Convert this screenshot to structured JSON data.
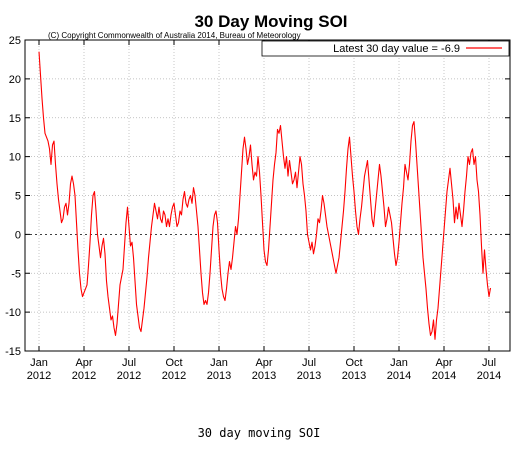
{
  "caption": "30 day moving SOI",
  "chart_data": {
    "type": "line",
    "title": "30 Day Moving SOI",
    "subtitle": "(C) Copyright Commonwealth of Australia 2014, Bureau of Meteorology",
    "xlabel": "",
    "ylabel": "",
    "ylim": [
      -15,
      25
    ],
    "yticks": [
      -15,
      -10,
      -5,
      0,
      5,
      10,
      15,
      20,
      25
    ],
    "xlim": [
      0,
      31
    ],
    "xticks": [
      {
        "x": 0,
        "label1": "Jan",
        "label2": "2012"
      },
      {
        "x": 3,
        "label1": "Apr",
        "label2": "2012"
      },
      {
        "x": 6,
        "label1": "Jul",
        "label2": "2012"
      },
      {
        "x": 9,
        "label1": "Oct",
        "label2": "2012"
      },
      {
        "x": 12,
        "label1": "Jan",
        "label2": "2013"
      },
      {
        "x": 15,
        "label1": "Apr",
        "label2": "2013"
      },
      {
        "x": 18,
        "label1": "Jul",
        "label2": "2013"
      },
      {
        "x": 21,
        "label1": "Oct",
        "label2": "2013"
      },
      {
        "x": 24,
        "label1": "Jan",
        "label2": "2014"
      },
      {
        "x": 27,
        "label1": "Apr",
        "label2": "2014"
      },
      {
        "x": 30,
        "label1": "Jul",
        "label2": "2014"
      }
    ],
    "grid": true,
    "legend_position": "top-right",
    "colors": {
      "series": "#ff0000",
      "grid": "#b0b0b0",
      "axis": "#000000"
    },
    "series": [
      {
        "name": "Latest 30 day value = -6.9",
        "points": [
          [
            0.0,
            23.5
          ],
          [
            0.1,
            20.5
          ],
          [
            0.2,
            17.5
          ],
          [
            0.3,
            15.0
          ],
          [
            0.4,
            13.0
          ],
          [
            0.5,
            12.5
          ],
          [
            0.6,
            12.0
          ],
          [
            0.7,
            11.0
          ],
          [
            0.8,
            9.0
          ],
          [
            0.9,
            11.5
          ],
          [
            1.0,
            12.0
          ],
          [
            1.1,
            9.0
          ],
          [
            1.2,
            6.5
          ],
          [
            1.3,
            4.5
          ],
          [
            1.4,
            3.0
          ],
          [
            1.5,
            1.5
          ],
          [
            1.6,
            2.0
          ],
          [
            1.7,
            3.5
          ],
          [
            1.8,
            4.0
          ],
          [
            1.9,
            2.5
          ],
          [
            2.0,
            4.0
          ],
          [
            2.1,
            6.5
          ],
          [
            2.2,
            7.5
          ],
          [
            2.3,
            6.5
          ],
          [
            2.4,
            5.0
          ],
          [
            2.5,
            1.5
          ],
          [
            2.6,
            -2.0
          ],
          [
            2.7,
            -5.0
          ],
          [
            2.8,
            -7.0
          ],
          [
            2.9,
            -8.0
          ],
          [
            3.0,
            -7.5
          ],
          [
            3.1,
            -7.0
          ],
          [
            3.2,
            -6.5
          ],
          [
            3.3,
            -4.0
          ],
          [
            3.4,
            -1.0
          ],
          [
            3.5,
            2.5
          ],
          [
            3.6,
            5.0
          ],
          [
            3.7,
            5.5
          ],
          [
            3.8,
            3.0
          ],
          [
            3.9,
            0.0
          ],
          [
            4.0,
            -1.5
          ],
          [
            4.1,
            -3.0
          ],
          [
            4.2,
            -1.5
          ],
          [
            4.3,
            -0.5
          ],
          [
            4.4,
            -2.5
          ],
          [
            4.5,
            -6.0
          ],
          [
            4.6,
            -8.0
          ],
          [
            4.7,
            -9.5
          ],
          [
            4.8,
            -11.0
          ],
          [
            4.9,
            -10.5
          ],
          [
            5.0,
            -12.0
          ],
          [
            5.1,
            -13.0
          ],
          [
            5.2,
            -11.5
          ],
          [
            5.3,
            -9.0
          ],
          [
            5.4,
            -6.5
          ],
          [
            5.5,
            -5.5
          ],
          [
            5.6,
            -4.5
          ],
          [
            5.7,
            -1.5
          ],
          [
            5.8,
            1.5
          ],
          [
            5.9,
            3.5
          ],
          [
            6.0,
            1.0
          ],
          [
            6.1,
            -1.5
          ],
          [
            6.2,
            -1.0
          ],
          [
            6.3,
            -3.0
          ],
          [
            6.4,
            -6.0
          ],
          [
            6.5,
            -9.0
          ],
          [
            6.6,
            -10.5
          ],
          [
            6.7,
            -12.0
          ],
          [
            6.8,
            -12.5
          ],
          [
            6.9,
            -11.0
          ],
          [
            7.0,
            -9.5
          ],
          [
            7.1,
            -7.5
          ],
          [
            7.2,
            -5.5
          ],
          [
            7.3,
            -3.0
          ],
          [
            7.4,
            -1.0
          ],
          [
            7.5,
            1.0
          ],
          [
            7.6,
            2.5
          ],
          [
            7.7,
            4.0
          ],
          [
            7.8,
            3.0
          ],
          [
            7.9,
            2.0
          ],
          [
            8.0,
            3.5
          ],
          [
            8.1,
            2.0
          ],
          [
            8.2,
            1.5
          ],
          [
            8.3,
            3.0
          ],
          [
            8.4,
            2.5
          ],
          [
            8.5,
            1.0
          ],
          [
            8.6,
            2.0
          ],
          [
            8.7,
            1.0
          ],
          [
            8.8,
            2.5
          ],
          [
            8.9,
            3.5
          ],
          [
            9.0,
            4.0
          ],
          [
            9.1,
            2.5
          ],
          [
            9.2,
            1.0
          ],
          [
            9.3,
            1.5
          ],
          [
            9.4,
            3.0
          ],
          [
            9.5,
            2.5
          ],
          [
            9.6,
            4.5
          ],
          [
            9.7,
            5.5
          ],
          [
            9.8,
            4.0
          ],
          [
            9.9,
            3.5
          ],
          [
            10.0,
            4.5
          ],
          [
            10.1,
            5.0
          ],
          [
            10.2,
            4.0
          ],
          [
            10.3,
            6.0
          ],
          [
            10.4,
            5.0
          ],
          [
            10.5,
            3.0
          ],
          [
            10.6,
            1.0
          ],
          [
            10.7,
            -2.0
          ],
          [
            10.8,
            -5.0
          ],
          [
            10.9,
            -7.5
          ],
          [
            11.0,
            -9.0
          ],
          [
            11.1,
            -8.5
          ],
          [
            11.2,
            -9.0
          ],
          [
            11.3,
            -7.5
          ],
          [
            11.4,
            -5.0
          ],
          [
            11.5,
            -2.0
          ],
          [
            11.6,
            1.0
          ],
          [
            11.7,
            2.5
          ],
          [
            11.8,
            3.0
          ],
          [
            11.9,
            1.5
          ],
          [
            12.0,
            -2.0
          ],
          [
            12.1,
            -5.0
          ],
          [
            12.2,
            -7.0
          ],
          [
            12.3,
            -8.0
          ],
          [
            12.4,
            -8.5
          ],
          [
            12.5,
            -7.0
          ],
          [
            12.6,
            -5.0
          ],
          [
            12.7,
            -3.5
          ],
          [
            12.8,
            -4.5
          ],
          [
            12.9,
            -3.0
          ],
          [
            13.0,
            -1.0
          ],
          [
            13.1,
            1.0
          ],
          [
            13.2,
            0.0
          ],
          [
            13.3,
            2.0
          ],
          [
            13.4,
            5.0
          ],
          [
            13.5,
            8.0
          ],
          [
            13.6,
            11.0
          ],
          [
            13.7,
            12.5
          ],
          [
            13.8,
            11.0
          ],
          [
            13.9,
            9.0
          ],
          [
            14.0,
            10.0
          ],
          [
            14.1,
            11.5
          ],
          [
            14.2,
            9.0
          ],
          [
            14.3,
            7.0
          ],
          [
            14.4,
            8.0
          ],
          [
            14.5,
            7.5
          ],
          [
            14.6,
            10.0
          ],
          [
            14.7,
            8.0
          ],
          [
            14.8,
            5.0
          ],
          [
            14.9,
            1.5
          ],
          [
            15.0,
            -2.0
          ],
          [
            15.1,
            -3.5
          ],
          [
            15.2,
            -4.0
          ],
          [
            15.3,
            -2.0
          ],
          [
            15.4,
            1.0
          ],
          [
            15.5,
            4.0
          ],
          [
            15.6,
            7.0
          ],
          [
            15.7,
            9.0
          ],
          [
            15.8,
            10.5
          ],
          [
            15.9,
            13.5
          ],
          [
            16.0,
            13.0
          ],
          [
            16.1,
            14.0
          ],
          [
            16.2,
            12.0
          ],
          [
            16.3,
            10.0
          ],
          [
            16.4,
            8.5
          ],
          [
            16.5,
            10.0
          ],
          [
            16.6,
            7.5
          ],
          [
            16.7,
            9.5
          ],
          [
            16.8,
            8.0
          ],
          [
            16.9,
            6.5
          ],
          [
            17.0,
            7.0
          ],
          [
            17.1,
            8.0
          ],
          [
            17.2,
            6.0
          ],
          [
            17.3,
            8.0
          ],
          [
            17.4,
            10.0
          ],
          [
            17.5,
            9.0
          ],
          [
            17.6,
            6.5
          ],
          [
            17.7,
            5.0
          ],
          [
            17.8,
            3.0
          ],
          [
            17.9,
            0.0
          ],
          [
            18.0,
            -1.0
          ],
          [
            18.1,
            -2.0
          ],
          [
            18.2,
            -1.0
          ],
          [
            18.3,
            -2.5
          ],
          [
            18.4,
            -1.5
          ],
          [
            18.5,
            0.0
          ],
          [
            18.6,
            2.0
          ],
          [
            18.7,
            1.5
          ],
          [
            18.8,
            3.0
          ],
          [
            18.9,
            5.0
          ],
          [
            19.0,
            4.0
          ],
          [
            19.1,
            2.5
          ],
          [
            19.2,
            1.0
          ],
          [
            19.3,
            0.0
          ],
          [
            19.4,
            -1.0
          ],
          [
            19.5,
            -2.0
          ],
          [
            19.6,
            -3.0
          ],
          [
            19.7,
            -4.0
          ],
          [
            19.8,
            -5.0
          ],
          [
            19.9,
            -4.0
          ],
          [
            20.0,
            -3.0
          ],
          [
            20.1,
            -1.0
          ],
          [
            20.2,
            1.0
          ],
          [
            20.3,
            3.0
          ],
          [
            20.4,
            5.5
          ],
          [
            20.5,
            8.5
          ],
          [
            20.6,
            11.0
          ],
          [
            20.7,
            12.5
          ],
          [
            20.8,
            10.0
          ],
          [
            20.9,
            7.5
          ],
          [
            21.0,
            5.5
          ],
          [
            21.1,
            3.0
          ],
          [
            21.2,
            1.0
          ],
          [
            21.3,
            0.0
          ],
          [
            21.4,
            2.0
          ],
          [
            21.5,
            3.5
          ],
          [
            21.6,
            5.5
          ],
          [
            21.7,
            7.5
          ],
          [
            21.8,
            8.5
          ],
          [
            21.9,
            9.5
          ],
          [
            22.0,
            7.0
          ],
          [
            22.1,
            4.5
          ],
          [
            22.2,
            2.0
          ],
          [
            22.3,
            1.0
          ],
          [
            22.4,
            3.0
          ],
          [
            22.5,
            5.0
          ],
          [
            22.6,
            7.0
          ],
          [
            22.7,
            9.0
          ],
          [
            22.8,
            7.5
          ],
          [
            22.9,
            5.5
          ],
          [
            23.0,
            3.5
          ],
          [
            23.1,
            1.0
          ],
          [
            23.2,
            2.0
          ],
          [
            23.3,
            3.5
          ],
          [
            23.4,
            2.5
          ],
          [
            23.5,
            1.5
          ],
          [
            23.6,
            -0.5
          ],
          [
            23.7,
            -2.5
          ],
          [
            23.8,
            -4.0
          ],
          [
            23.9,
            -3.0
          ],
          [
            24.0,
            -1.0
          ],
          [
            24.1,
            1.5
          ],
          [
            24.2,
            4.0
          ],
          [
            24.3,
            6.0
          ],
          [
            24.4,
            9.0
          ],
          [
            24.5,
            8.0
          ],
          [
            24.6,
            7.0
          ],
          [
            24.7,
            9.0
          ],
          [
            24.8,
            12.0
          ],
          [
            24.9,
            14.0
          ],
          [
            25.0,
            14.5
          ],
          [
            25.1,
            12.0
          ],
          [
            25.2,
            9.0
          ],
          [
            25.3,
            6.0
          ],
          [
            25.4,
            3.0
          ],
          [
            25.5,
            0.0
          ],
          [
            25.6,
            -3.0
          ],
          [
            25.7,
            -5.0
          ],
          [
            25.8,
            -7.0
          ],
          [
            25.9,
            -9.5
          ],
          [
            26.0,
            -11.5
          ],
          [
            26.1,
            -13.0
          ],
          [
            26.2,
            -12.5
          ],
          [
            26.3,
            -11.0
          ],
          [
            26.4,
            -13.5
          ],
          [
            26.5,
            -11.0
          ],
          [
            26.6,
            -9.5
          ],
          [
            26.7,
            -7.0
          ],
          [
            26.8,
            -4.5
          ],
          [
            26.9,
            -2.0
          ],
          [
            27.0,
            0.5
          ],
          [
            27.1,
            3.0
          ],
          [
            27.2,
            5.5
          ],
          [
            27.3,
            7.0
          ],
          [
            27.4,
            8.5
          ],
          [
            27.5,
            6.5
          ],
          [
            27.6,
            4.5
          ],
          [
            27.7,
            1.5
          ],
          [
            27.8,
            3.5
          ],
          [
            27.9,
            2.0
          ],
          [
            28.0,
            4.0
          ],
          [
            28.1,
            2.5
          ],
          [
            28.2,
            1.0
          ],
          [
            28.3,
            3.0
          ],
          [
            28.4,
            5.5
          ],
          [
            28.5,
            7.5
          ],
          [
            28.6,
            10.0
          ],
          [
            28.7,
            9.0
          ],
          [
            28.8,
            10.5
          ],
          [
            28.9,
            11.0
          ],
          [
            29.0,
            9.0
          ],
          [
            29.1,
            10.0
          ],
          [
            29.2,
            7.0
          ],
          [
            29.3,
            5.5
          ],
          [
            29.4,
            2.5
          ],
          [
            29.5,
            -1.5
          ],
          [
            29.6,
            -5.0
          ],
          [
            29.7,
            -2.0
          ],
          [
            29.8,
            -4.5
          ],
          [
            29.9,
            -6.5
          ],
          [
            30.0,
            -8.0
          ],
          [
            30.1,
            -6.9
          ]
        ]
      }
    ]
  }
}
